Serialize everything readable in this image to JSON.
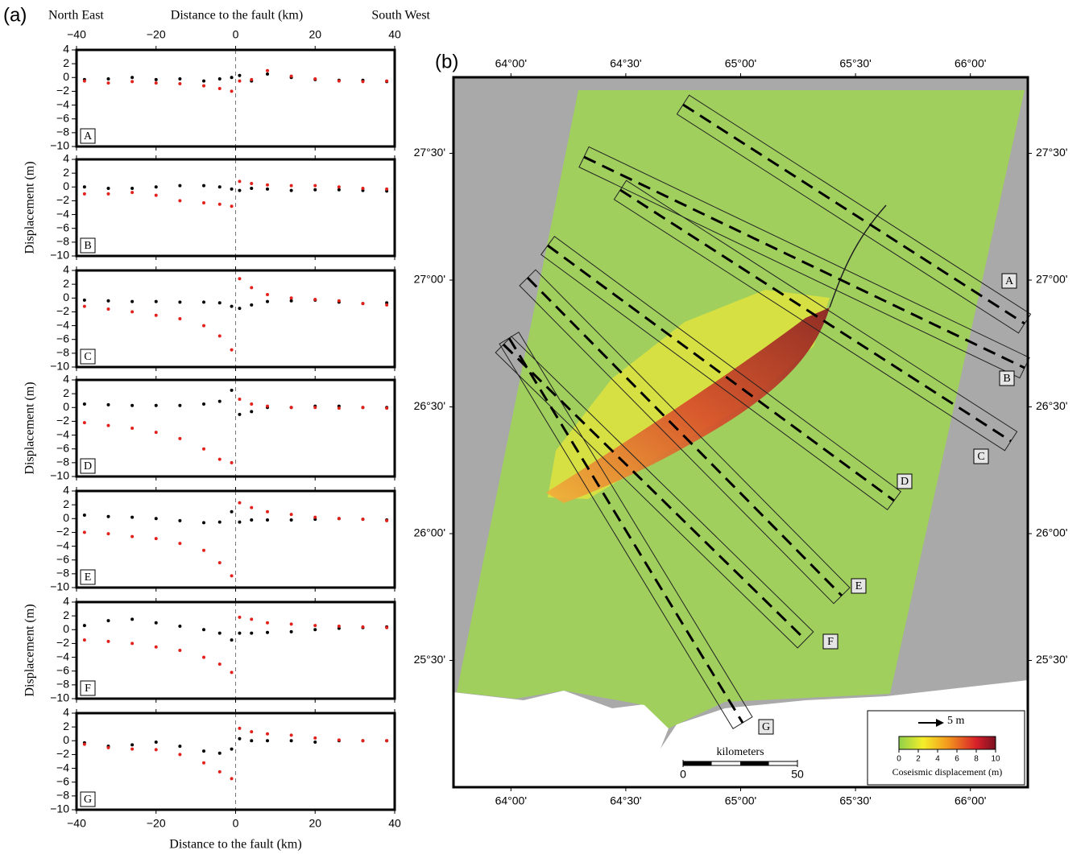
{
  "chart_data": [
    {
      "type": "scatter",
      "label": "A",
      "panel_label": "(a)",
      "left_note": "North East",
      "top_xlabel": "Distance to the fault (km)",
      "right_note": "South West",
      "xlim": [
        -40,
        40
      ],
      "ylim": [
        -10,
        4
      ],
      "xticks": [
        {
          "value": -40,
          "label": "−40"
        },
        {
          "value": -20,
          "label": "−20"
        },
        0,
        20,
        40
      ],
      "yticks": [
        {
          "value": -10,
          "label": "−10"
        },
        {
          "value": -8,
          "label": "−8"
        },
        {
          "value": -6,
          "label": "−6"
        },
        {
          "value": -4,
          "label": "−4"
        },
        {
          "value": -2,
          "label": "−2"
        },
        0,
        2,
        4
      ],
      "x": [
        -38,
        -32,
        -26,
        -20,
        -14,
        -8,
        -4,
        -1,
        1,
        4,
        8,
        14,
        20,
        26,
        32,
        38
      ],
      "series": [
        {
          "color": "#000000",
          "values": [
            -0.3,
            -0.2,
            0,
            -0.3,
            -0.2,
            -0.5,
            -0.2,
            0,
            0.3,
            -0.5,
            0.5,
            0,
            -0.3,
            -0.4,
            -0.4,
            -0.6
          ]
        },
        {
          "color": "#e3211c",
          "values": [
            -0.5,
            -0.8,
            -0.6,
            -0.8,
            -0.9,
            -1.2,
            -1.6,
            -2,
            -0.5,
            -0.3,
            1,
            0.2,
            -0.2,
            -0.5,
            -0.6,
            -0.5
          ]
        }
      ]
    },
    {
      "type": "scatter",
      "label": "B",
      "ylabel": "Displacement (m)",
      "xlim": [
        -40,
        40
      ],
      "ylim": [
        -10,
        4
      ],
      "xticks": [
        -40,
        -20,
        0,
        20,
        40
      ],
      "yticks": [
        {
          "value": -10,
          "label": "−10"
        },
        {
          "value": -8,
          "label": "−8"
        },
        {
          "value": -6,
          "label": "−6"
        },
        {
          "value": -4,
          "label": "−4"
        },
        {
          "value": -2,
          "label": "−2"
        },
        0,
        2,
        4
      ],
      "x": [
        -38,
        -32,
        -26,
        -20,
        -14,
        -8,
        -4,
        -1,
        1,
        4,
        8,
        14,
        20,
        26,
        32,
        38
      ],
      "series": [
        {
          "color": "#000000",
          "values": [
            0,
            -0.2,
            -0.2,
            0,
            0.2,
            0.2,
            0,
            -0.3,
            -0.5,
            -0.2,
            -0.3,
            -0.5,
            -0.4,
            -0.4,
            -0.5,
            -0.6
          ]
        },
        {
          "color": "#e3211c",
          "values": [
            -1,
            -1,
            -0.8,
            -1.2,
            -2,
            -2.3,
            -2.5,
            -2.8,
            0.8,
            0.5,
            0.3,
            0.2,
            0.2,
            0,
            -0.2,
            -0.3
          ]
        }
      ]
    },
    {
      "type": "scatter",
      "label": "C",
      "xlim": [
        -40,
        40
      ],
      "ylim": [
        -10,
        4
      ],
      "xticks": [
        -40,
        -20,
        0,
        20,
        40
      ],
      "yticks": [
        {
          "value": -10,
          "label": "−10"
        },
        {
          "value": -8,
          "label": "−8"
        },
        {
          "value": -6,
          "label": "−6"
        },
        {
          "value": -4,
          "label": "−4"
        },
        {
          "value": -2,
          "label": "−2"
        },
        0,
        2,
        4
      ],
      "x": [
        -38,
        -32,
        -26,
        -20,
        -14,
        -8,
        -4,
        -1,
        1,
        4,
        8,
        14,
        20,
        26,
        32,
        38
      ],
      "series": [
        {
          "color": "#000000",
          "values": [
            -0.3,
            -0.4,
            -0.5,
            -0.5,
            -0.6,
            -0.6,
            -0.7,
            -1.2,
            -1.5,
            -1,
            -0.5,
            -0.4,
            -0.3,
            -0.6,
            -0.8,
            -0.7
          ]
        },
        {
          "color": "#e3211c",
          "values": [
            -1.2,
            -1.6,
            -2,
            -2.5,
            -3,
            -4,
            -5.5,
            -7.5,
            2.8,
            1.5,
            0.5,
            0,
            -0.2,
            -0.4,
            -0.8,
            -1
          ]
        }
      ]
    },
    {
      "type": "scatter",
      "label": "D",
      "ylabel": "Displacement (m)",
      "xlim": [
        -40,
        40
      ],
      "ylim": [
        -10,
        4
      ],
      "xticks": [
        -40,
        -20,
        0,
        20,
        40
      ],
      "yticks": [
        {
          "value": -10,
          "label": "−10"
        },
        {
          "value": -8,
          "label": "−8"
        },
        {
          "value": -6,
          "label": "−6"
        },
        {
          "value": -4,
          "label": "−4"
        },
        {
          "value": -2,
          "label": "−2"
        },
        0,
        2,
        4
      ],
      "x": [
        -38,
        -32,
        -26,
        -20,
        -14,
        -8,
        -4,
        -1,
        1,
        4,
        8,
        14,
        20,
        26,
        32,
        38
      ],
      "series": [
        {
          "color": "#000000",
          "values": [
            0.5,
            0.4,
            0.3,
            0.3,
            0.3,
            0.5,
            0.9,
            2.5,
            -1,
            -0.6,
            0,
            0,
            0.2,
            0.2,
            0,
            0
          ]
        },
        {
          "color": "#e3211c",
          "values": [
            -2.2,
            -2.6,
            -3,
            -3.6,
            -4.5,
            -6,
            -7.5,
            -8,
            1.2,
            0.5,
            0.2,
            0,
            0,
            -0.1,
            0,
            -0.1
          ]
        }
      ]
    },
    {
      "type": "scatter",
      "label": "E",
      "xlim": [
        -40,
        40
      ],
      "ylim": [
        -10,
        4
      ],
      "xticks": [
        -40,
        -20,
        0,
        20,
        40
      ],
      "yticks": [
        {
          "value": -10,
          "label": "−10"
        },
        {
          "value": -8,
          "label": "−8"
        },
        {
          "value": -6,
          "label": "−6"
        },
        {
          "value": -4,
          "label": "−4"
        },
        {
          "value": -2,
          "label": "−2"
        },
        0,
        2,
        4
      ],
      "x": [
        -38,
        -32,
        -26,
        -20,
        -14,
        -8,
        -4,
        -1,
        1,
        4,
        8,
        14,
        20,
        26,
        32,
        38
      ],
      "series": [
        {
          "color": "#000000",
          "values": [
            0.5,
            0.3,
            0.2,
            0,
            -0.3,
            -0.6,
            -0.5,
            1,
            -0.5,
            -0.2,
            -0.2,
            -0.2,
            -0.1,
            0,
            -0.1,
            -0.2
          ]
        },
        {
          "color": "#e3211c",
          "values": [
            -2,
            -2.2,
            -2.6,
            -2.9,
            -3.6,
            -4.6,
            -6.4,
            -8.3,
            2.3,
            1.6,
            1,
            0.6,
            0.2,
            0,
            -0.1,
            -0.3
          ]
        }
      ]
    },
    {
      "type": "scatter",
      "label": "F",
      "ylabel": "Displacement (m)",
      "xlim": [
        -40,
        40
      ],
      "ylim": [
        -10,
        4
      ],
      "xticks": [
        -40,
        -20,
        0,
        20,
        40
      ],
      "yticks": [
        {
          "value": -10,
          "label": "−10"
        },
        {
          "value": -8,
          "label": "−8"
        },
        {
          "value": -6,
          "label": "−6"
        },
        {
          "value": -4,
          "label": "−4"
        },
        {
          "value": -2,
          "label": "−2"
        },
        0,
        2,
        4
      ],
      "x": [
        -38,
        -32,
        -26,
        -20,
        -14,
        -8,
        -4,
        -1,
        1,
        4,
        8,
        14,
        20,
        26,
        32,
        38
      ],
      "series": [
        {
          "color": "#000000",
          "values": [
            0.6,
            1.3,
            1.5,
            1,
            0.5,
            0,
            -0.5,
            -1.5,
            -0.5,
            -0.5,
            -0.4,
            -0.3,
            0,
            0.2,
            0.3,
            0.4
          ]
        },
        {
          "color": "#e3211c",
          "values": [
            -1.5,
            -1.7,
            -2,
            -2.5,
            -3,
            -4,
            -5,
            -6.2,
            1.8,
            1.5,
            1,
            0.8,
            0.6,
            0.5,
            0.4,
            0.3
          ]
        }
      ]
    },
    {
      "type": "scatter",
      "label": "G",
      "xlabel": "Distance to the fault (km)",
      "xlim": [
        -40,
        40
      ],
      "ylim": [
        -10,
        4
      ],
      "xticks": [
        {
          "value": -40,
          "label": "−40"
        },
        {
          "value": -20,
          "label": "−20"
        },
        0,
        20,
        40
      ],
      "yticks": [
        {
          "value": -10,
          "label": "−10"
        },
        {
          "value": -8,
          "label": "−8"
        },
        {
          "value": -6,
          "label": "−6"
        },
        {
          "value": -4,
          "label": "−4"
        },
        {
          "value": -2,
          "label": "−2"
        },
        0,
        2,
        4
      ],
      "x": [
        -38,
        -32,
        -26,
        -20,
        -14,
        -8,
        -4,
        -1,
        1,
        4,
        8,
        14,
        20,
        26,
        32,
        38
      ],
      "series": [
        {
          "color": "#000000",
          "values": [
            -0.3,
            -0.8,
            -0.6,
            -0.2,
            -0.8,
            -1.5,
            -1.8,
            -1.2,
            0.3,
            0,
            0,
            0,
            -0.2,
            0,
            0,
            0
          ]
        },
        {
          "color": "#e3211c",
          "values": [
            -0.5,
            -1,
            -1.2,
            -1.3,
            -2,
            -3.2,
            -4.5,
            -5.5,
            1.8,
            1.3,
            1,
            0.8,
            0.4,
            0.1,
            0,
            0
          ]
        }
      ]
    },
    {
      "type": "map",
      "panel_label": "(b)",
      "lonlim": [
        63.75,
        66.25
      ],
      "latlim": [
        25.0,
        27.8
      ],
      "lonticks": [
        {
          "value": 64,
          "label": "64°00'"
        },
        {
          "value": 64.5,
          "label": "64°30'"
        },
        {
          "value": 65,
          "label": "65°00'"
        },
        {
          "value": 65.5,
          "label": "65°30'"
        },
        {
          "value": 66,
          "label": "66°00'"
        }
      ],
      "latticks": [
        {
          "value": 25.5,
          "label": "25°30'"
        },
        {
          "value": 26,
          "label": "26°00'"
        },
        {
          "value": 26.5,
          "label": "26°30'"
        },
        {
          "value": 27,
          "label": "27°00'"
        },
        {
          "value": 27.5,
          "label": "27°30'"
        }
      ],
      "profiles": [
        "A",
        "B",
        "C",
        "D",
        "E",
        "F",
        "G"
      ],
      "vector_scale": "5 m",
      "colorbar": {
        "title": "Coseismic displacement (m)",
        "clim": [
          0,
          10
        ],
        "ticks": [
          0,
          2,
          4,
          6,
          8,
          10
        ]
      },
      "scale_bar": {
        "title": "kilometers",
        "ticks": [
          0,
          50
        ]
      }
    }
  ]
}
